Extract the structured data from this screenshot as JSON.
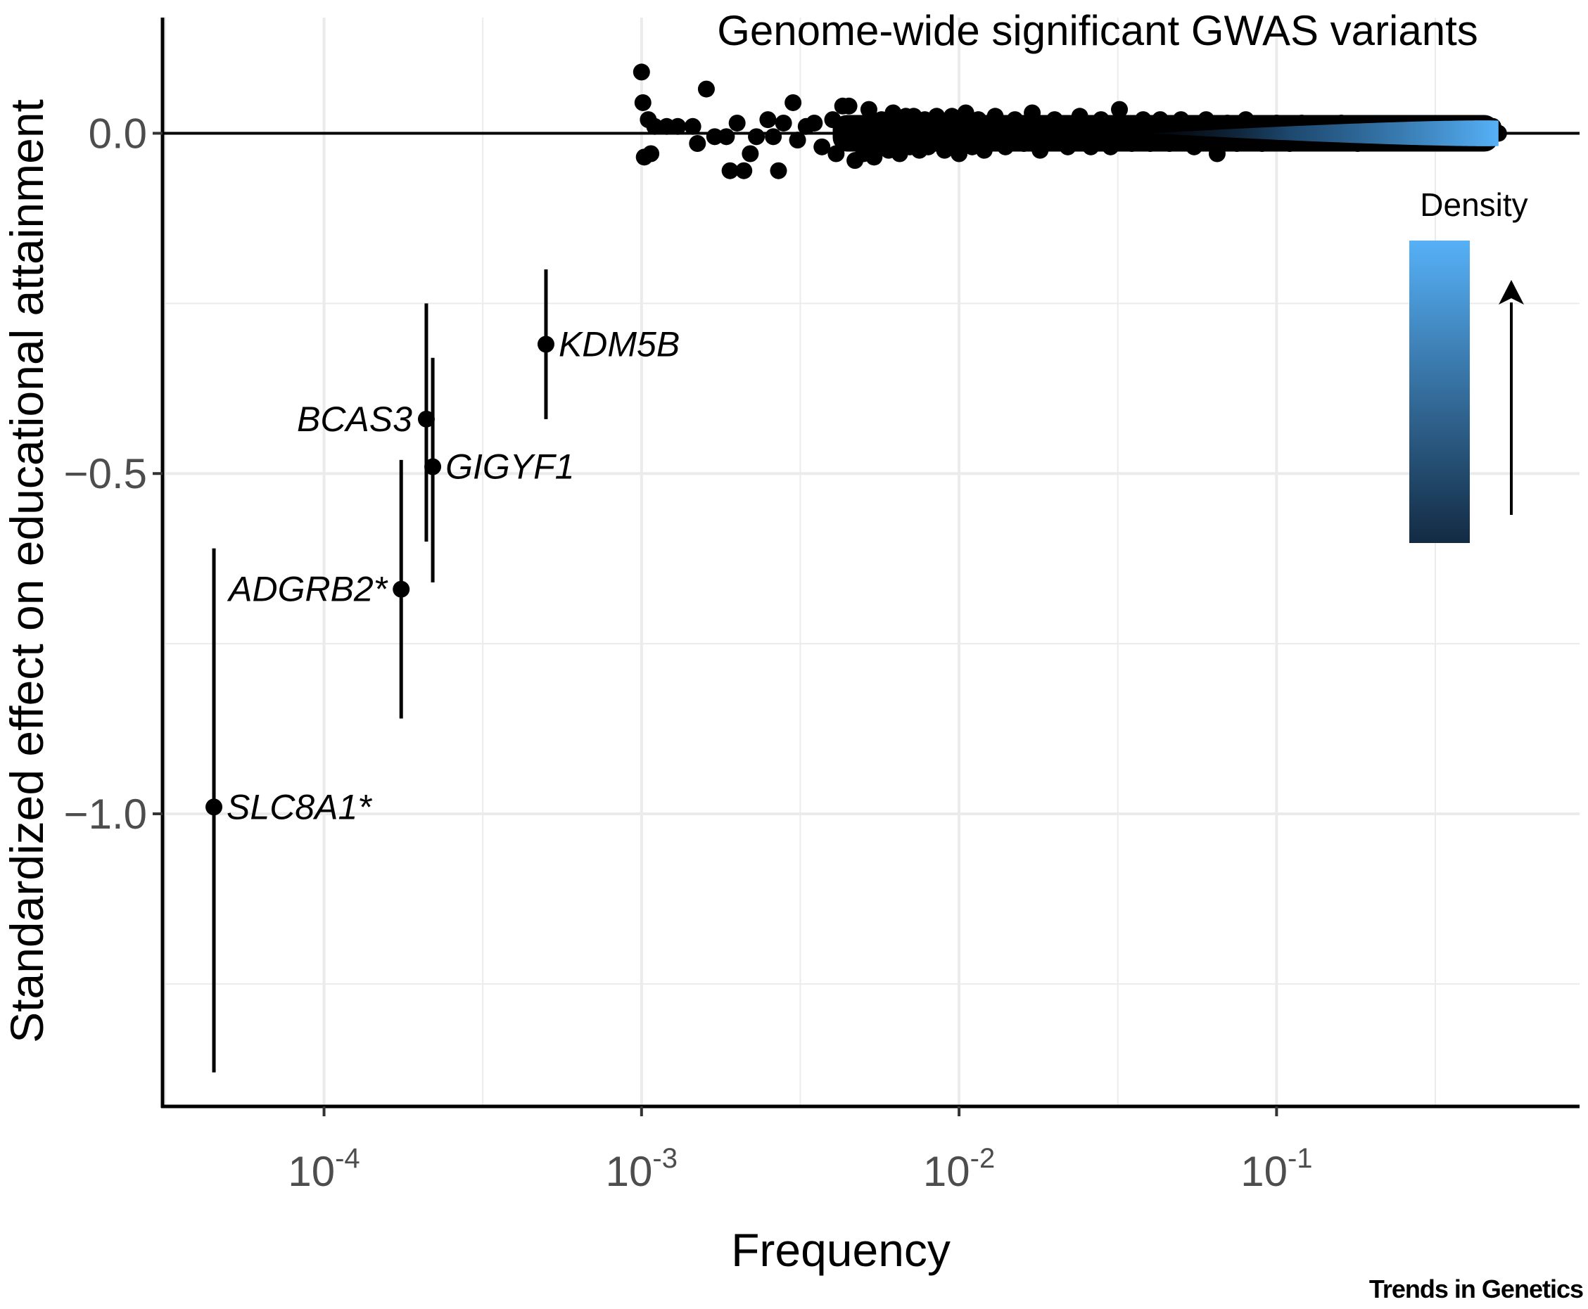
{
  "chart_data": {
    "type": "scatter",
    "title": "Genome-wide significant GWAS variants",
    "xlabel": "Frequency",
    "ylabel": "Standardized effect on educational attainment",
    "x_scale": "log10",
    "xlim": [
      3.1e-05,
      0.9
    ],
    "ylim": [
      -1.43,
      0.17
    ],
    "x_ticks": [
      {
        "value": 0.0001,
        "base": "10",
        "exp": "-4"
      },
      {
        "value": 0.001,
        "base": "10",
        "exp": "-3"
      },
      {
        "value": 0.01,
        "base": "10",
        "exp": "-2"
      },
      {
        "value": 0.1,
        "base": "10",
        "exp": "-1"
      }
    ],
    "y_ticks": [
      {
        "value": 0.0,
        "label": "0.0"
      },
      {
        "value": -0.5,
        "label": "−0.5"
      },
      {
        "value": -1.0,
        "label": "−1.0"
      }
    ],
    "grid": true,
    "reference_line_y": 0,
    "rare_variants": [
      {
        "gene": "KDM5B",
        "x": 0.0005,
        "y": -0.31,
        "ci": [
          -0.42,
          -0.2
        ],
        "label_side": "right"
      },
      {
        "gene": "BCAS3",
        "x": 0.00021,
        "y": -0.42,
        "ci": [
          -0.6,
          -0.25
        ],
        "label_side": "left"
      },
      {
        "gene": "GIGYF1",
        "x": 0.00022,
        "y": -0.49,
        "ci": [
          -0.66,
          -0.33
        ],
        "label_side": "right"
      },
      {
        "gene": "ADGRB2*",
        "x": 0.000175,
        "y": -0.67,
        "ci": [
          -0.86,
          -0.48
        ],
        "label_side": "left"
      },
      {
        "gene": "SLC8A1*",
        "x": 4.5e-05,
        "y": -0.99,
        "ci": [
          -1.38,
          -0.61
        ],
        "label_side": "right"
      }
    ],
    "gwas_points_sample": [
      {
        "x": 0.001,
        "y": 0.09
      },
      {
        "x": 0.00101,
        "y": 0.045
      },
      {
        "x": 0.00105,
        "y": 0.02
      },
      {
        "x": 0.00102,
        "y": -0.035
      },
      {
        "x": 0.00107,
        "y": -0.03
      },
      {
        "x": 0.0011,
        "y": 0.01
      },
      {
        "x": 0.0012,
        "y": 0.01
      },
      {
        "x": 0.0013,
        "y": 0.01
      },
      {
        "x": 0.00145,
        "y": 0.01
      },
      {
        "x": 0.0016,
        "y": 0.065
      },
      {
        "x": 0.0015,
        "y": -0.015
      },
      {
        "x": 0.0017,
        "y": -0.005
      },
      {
        "x": 0.00185,
        "y": -0.005
      },
      {
        "x": 0.0019,
        "y": -0.055
      },
      {
        "x": 0.0021,
        "y": -0.055
      },
      {
        "x": 0.002,
        "y": 0.015
      },
      {
        "x": 0.0022,
        "y": -0.03
      },
      {
        "x": 0.0023,
        "y": -0.005
      },
      {
        "x": 0.0025,
        "y": 0.02
      },
      {
        "x": 0.0026,
        "y": -0.005
      },
      {
        "x": 0.0027,
        "y": -0.055
      },
      {
        "x": 0.0028,
        "y": 0.015
      },
      {
        "x": 0.003,
        "y": 0.045
      },
      {
        "x": 0.0031,
        "y": -0.01
      },
      {
        "x": 0.0033,
        "y": 0.01
      },
      {
        "x": 0.0035,
        "y": 0.015
      },
      {
        "x": 0.0037,
        "y": -0.02
      },
      {
        "x": 0.004,
        "y": 0.02
      },
      {
        "x": 0.0041,
        "y": -0.03
      },
      {
        "x": 0.0043,
        "y": 0.04
      },
      {
        "x": 0.0045,
        "y": 0.04
      },
      {
        "x": 0.0047,
        "y": -0.04
      },
      {
        "x": 0.005,
        "y": -0.03
      },
      {
        "x": 0.0052,
        "y": 0.035
      },
      {
        "x": 0.0054,
        "y": -0.035
      },
      {
        "x": 0.0057,
        "y": 0.02
      },
      {
        "x": 0.006,
        "y": -0.025
      },
      {
        "x": 0.0062,
        "y": 0.03
      },
      {
        "x": 0.0065,
        "y": -0.03
      },
      {
        "x": 0.0068,
        "y": 0.025
      },
      {
        "x": 0.007,
        "y": -0.02
      },
      {
        "x": 0.0072,
        "y": 0.025
      },
      {
        "x": 0.0075,
        "y": -0.025
      },
      {
        "x": 0.0078,
        "y": 0.02
      },
      {
        "x": 0.008,
        "y": -0.02
      },
      {
        "x": 0.0085,
        "y": 0.025
      },
      {
        "x": 0.009,
        "y": -0.025
      },
      {
        "x": 0.0095,
        "y": 0.025
      },
      {
        "x": 0.01,
        "y": -0.03
      },
      {
        "x": 0.0105,
        "y": 0.03
      },
      {
        "x": 0.011,
        "y": -0.02
      },
      {
        "x": 0.0115,
        "y": 0.02
      },
      {
        "x": 0.012,
        "y": -0.025
      },
      {
        "x": 0.013,
        "y": 0.025
      },
      {
        "x": 0.014,
        "y": -0.02
      },
      {
        "x": 0.015,
        "y": 0.02
      },
      {
        "x": 0.016,
        "y": -0.015
      },
      {
        "x": 0.017,
        "y": 0.03
      },
      {
        "x": 0.018,
        "y": -0.025
      },
      {
        "x": 0.02,
        "y": 0.02
      },
      {
        "x": 0.022,
        "y": -0.02
      },
      {
        "x": 0.024,
        "y": 0.025
      },
      {
        "x": 0.026,
        "y": -0.02
      },
      {
        "x": 0.028,
        "y": 0.02
      },
      {
        "x": 0.03,
        "y": -0.02
      },
      {
        "x": 0.032,
        "y": 0.035
      },
      {
        "x": 0.035,
        "y": -0.015
      },
      {
        "x": 0.038,
        "y": 0.02
      },
      {
        "x": 0.04,
        "y": -0.015
      },
      {
        "x": 0.043,
        "y": 0.02
      },
      {
        "x": 0.046,
        "y": -0.015
      },
      {
        "x": 0.05,
        "y": 0.02
      },
      {
        "x": 0.055,
        "y": -0.02
      },
      {
        "x": 0.06,
        "y": 0.02
      },
      {
        "x": 0.065,
        "y": -0.03
      },
      {
        "x": 0.07,
        "y": 0.015
      },
      {
        "x": 0.075,
        "y": -0.015
      },
      {
        "x": 0.08,
        "y": 0.02
      },
      {
        "x": 0.09,
        "y": -0.015
      },
      {
        "x": 0.1,
        "y": 0.015
      },
      {
        "x": 0.11,
        "y": -0.015
      },
      {
        "x": 0.12,
        "y": 0.015
      },
      {
        "x": 0.14,
        "y": -0.01
      },
      {
        "x": 0.16,
        "y": 0.015
      },
      {
        "x": 0.18,
        "y": -0.015
      },
      {
        "x": 0.2,
        "y": 0.012
      },
      {
        "x": 0.23,
        "y": -0.012
      },
      {
        "x": 0.26,
        "y": 0.012
      },
      {
        "x": 0.3,
        "y": -0.012
      },
      {
        "x": 0.34,
        "y": 0.012
      },
      {
        "x": 0.38,
        "y": -0.01
      },
      {
        "x": 0.42,
        "y": 0.01
      },
      {
        "x": 0.46,
        "y": -0.005
      },
      {
        "x": 0.48,
        "y": 0.01
      },
      {
        "x": 0.5,
        "y": 0.0
      }
    ],
    "legend": {
      "title": "Density",
      "type": "color-gradient",
      "colors": [
        "#132b43",
        "#56b1f7"
      ],
      "placement": "top-right"
    },
    "colors": {
      "point": "#000000",
      "gridline": "#ebebeb",
      "tick_label": "#4d4d4d",
      "density_low": "#132b43",
      "density_high": "#56b1f7"
    }
  },
  "source": "Trends in Genetics"
}
